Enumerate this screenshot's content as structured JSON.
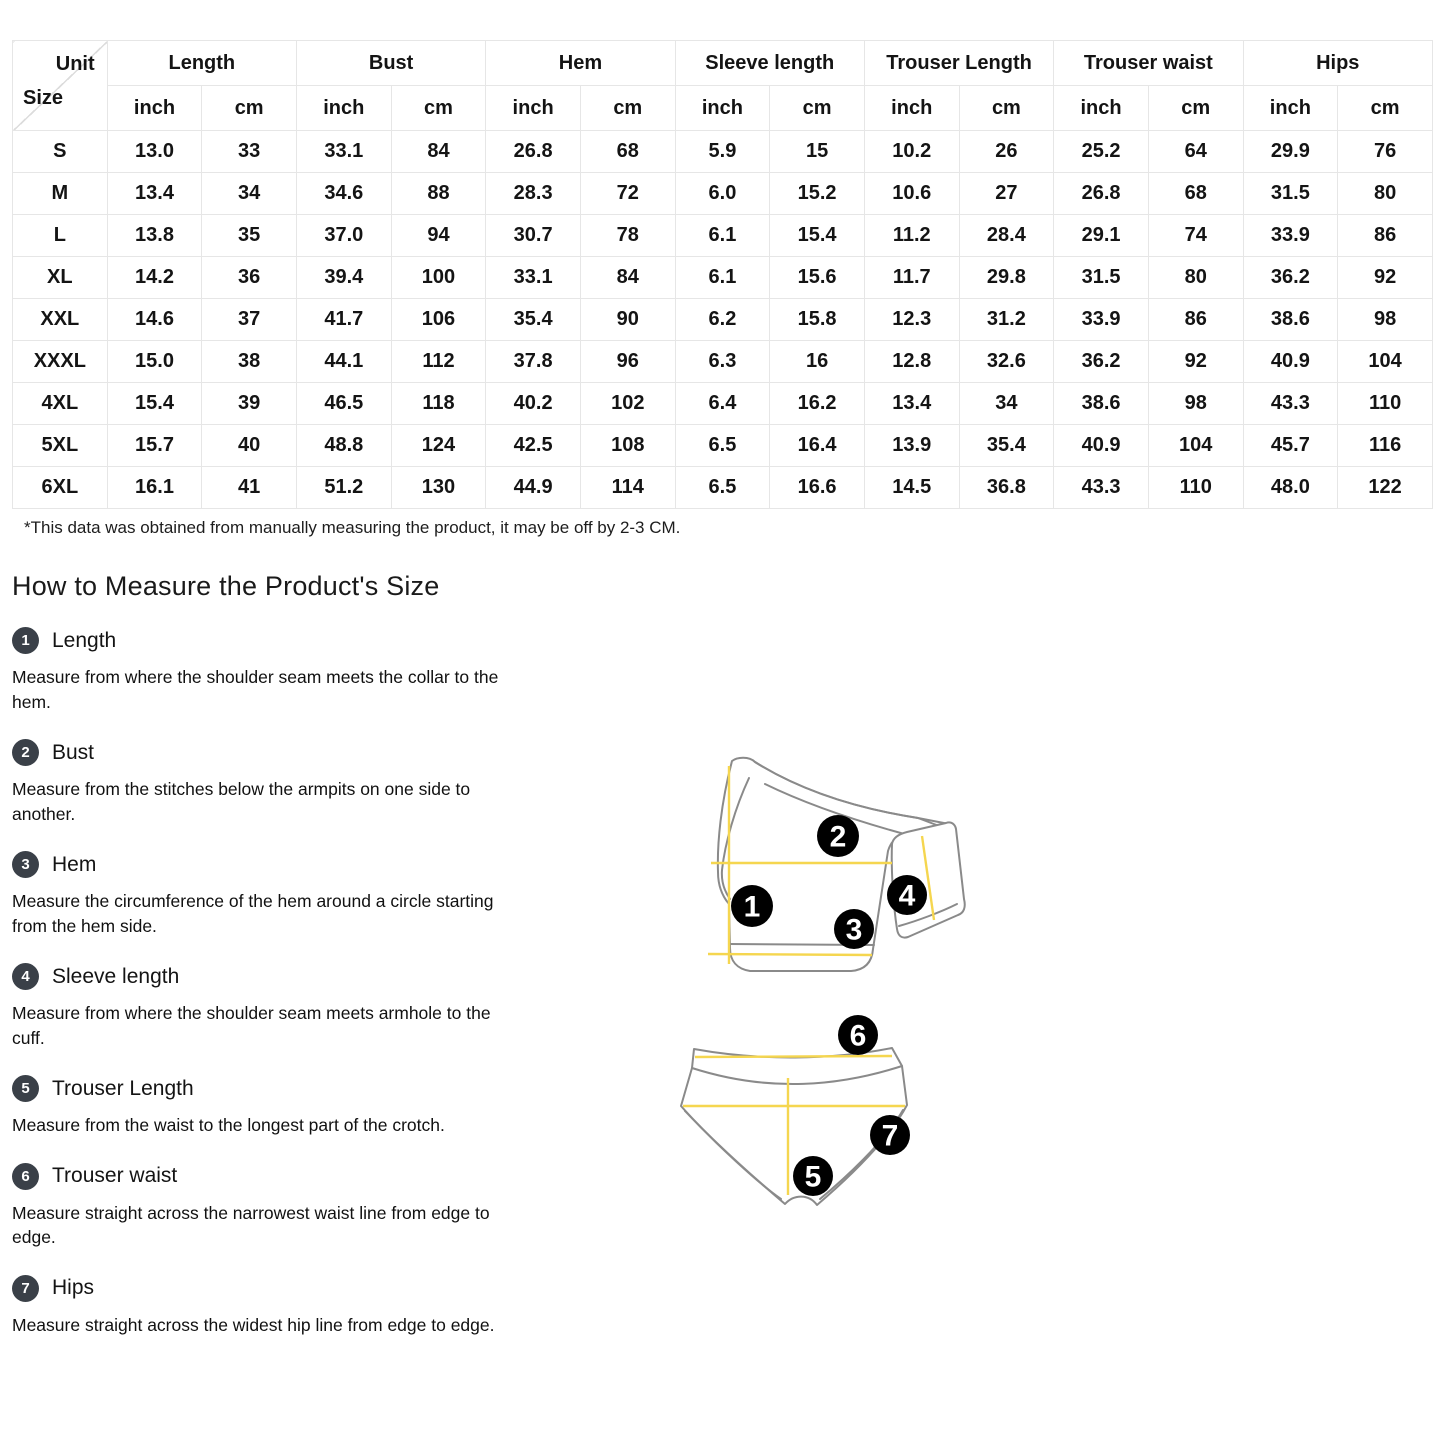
{
  "size_chart": {
    "corner": {
      "top_label": "Unit",
      "bottom_label": "Size"
    },
    "column_groups": [
      "Length",
      "Bust",
      "Hem",
      "Sleeve length",
      "Trouser Length",
      "Trouser waist",
      "Hips"
    ],
    "unit_subheaders": [
      "inch",
      "cm"
    ],
    "rows": [
      {
        "size": "S",
        "values": [
          "13.0",
          "33",
          "33.1",
          "84",
          "26.8",
          "68",
          "5.9",
          "15",
          "10.2",
          "26",
          "25.2",
          "64",
          "29.9",
          "76"
        ]
      },
      {
        "size": "M",
        "values": [
          "13.4",
          "34",
          "34.6",
          "88",
          "28.3",
          "72",
          "6.0",
          "15.2",
          "10.6",
          "27",
          "26.8",
          "68",
          "31.5",
          "80"
        ]
      },
      {
        "size": "L",
        "values": [
          "13.8",
          "35",
          "37.0",
          "94",
          "30.7",
          "78",
          "6.1",
          "15.4",
          "11.2",
          "28.4",
          "29.1",
          "74",
          "33.9",
          "86"
        ]
      },
      {
        "size": "XL",
        "values": [
          "14.2",
          "36",
          "39.4",
          "100",
          "33.1",
          "84",
          "6.1",
          "15.6",
          "11.7",
          "29.8",
          "31.5",
          "80",
          "36.2",
          "92"
        ]
      },
      {
        "size": "XXL",
        "values": [
          "14.6",
          "37",
          "41.7",
          "106",
          "35.4",
          "90",
          "6.2",
          "15.8",
          "12.3",
          "31.2",
          "33.9",
          "86",
          "38.6",
          "98"
        ]
      },
      {
        "size": "XXXL",
        "values": [
          "15.0",
          "38",
          "44.1",
          "112",
          "37.8",
          "96",
          "6.3",
          "16",
          "12.8",
          "32.6",
          "36.2",
          "92",
          "40.9",
          "104"
        ]
      },
      {
        "size": "4XL",
        "values": [
          "15.4",
          "39",
          "46.5",
          "118",
          "40.2",
          "102",
          "6.4",
          "16.2",
          "13.4",
          "34",
          "38.6",
          "98",
          "43.3",
          "110"
        ]
      },
      {
        "size": "5XL",
        "values": [
          "15.7",
          "40",
          "48.8",
          "124",
          "42.5",
          "108",
          "6.5",
          "16.4",
          "13.9",
          "35.4",
          "40.9",
          "104",
          "45.7",
          "116"
        ]
      },
      {
        "size": "6XL",
        "values": [
          "16.1",
          "41",
          "51.2",
          "130",
          "44.9",
          "114",
          "6.5",
          "16.6",
          "14.5",
          "36.8",
          "43.3",
          "110",
          "48.0",
          "122"
        ]
      }
    ],
    "footnote": "*This data was obtained from manually measuring the product, it may be off by 2-3 CM."
  },
  "measure_guide": {
    "title": "How to Measure the Product's Size",
    "items": [
      {
        "num": "1",
        "label": "Length",
        "desc": "Measure from where the shoulder seam meets the collar to the hem."
      },
      {
        "num": "2",
        "label": "Bust",
        "desc": "Measure from the stitches below the armpits on one side to another."
      },
      {
        "num": "3",
        "label": "Hem",
        "desc": "Measure the circumference of the hem around a circle starting from the hem side."
      },
      {
        "num": "4",
        "label": "Sleeve length",
        "desc": "Measure from where the shoulder seam meets armhole to the cuff."
      },
      {
        "num": "5",
        "label": "Trouser Length",
        "desc": "Measure from the waist to the longest part of the crotch."
      },
      {
        "num": "6",
        "label": "Trouser waist",
        "desc": "Measure straight across the narrowest waist line from edge to edge."
      },
      {
        "num": "7",
        "label": "Hips",
        "desc": "Measure straight across the widest hip line from edge to edge."
      }
    ]
  },
  "illustrations": {
    "top_markers": [
      "1",
      "2",
      "3",
      "4"
    ],
    "bottom_markers": [
      "5",
      "6",
      "7"
    ]
  },
  "colors": {
    "table_border": "#e6e6e6",
    "text_ink": "#141414",
    "badge_dark": "#3a4048",
    "measure_line_yellow": "#f5d64f",
    "garment_outline_gray": "#8a8a8a"
  }
}
